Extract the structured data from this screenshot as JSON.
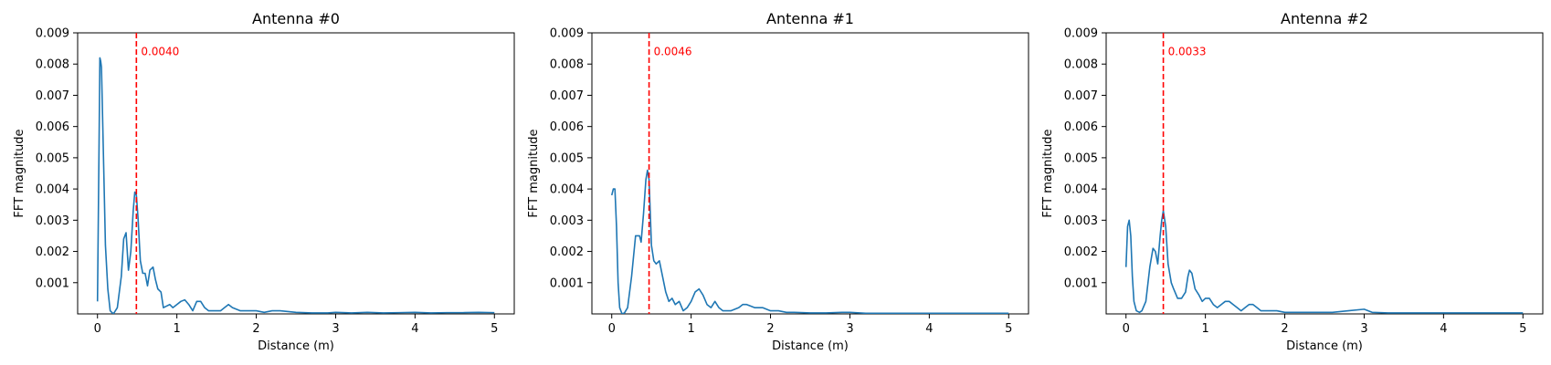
{
  "chart_data": [
    {
      "type": "line",
      "title": "Antenna #0",
      "xlabel": "Distance (m)",
      "ylabel": "FFT magnitude",
      "xlim": [
        -0.25,
        5.25
      ],
      "ylim": [
        0.0,
        0.009
      ],
      "xticks": [
        0,
        1,
        2,
        3,
        4,
        5
      ],
      "yticks": [
        0.001,
        0.002,
        0.003,
        0.004,
        0.005,
        0.006,
        0.007,
        0.008,
        0.009
      ],
      "line_color": "#1f77b4",
      "vline": {
        "x": 0.49,
        "color": "#ff0000",
        "style": "dashed"
      },
      "annotation": {
        "x": 0.49,
        "y": 0.0084,
        "text": "0.0040",
        "color": "#ff0000"
      },
      "series": [
        {
          "x": [
            0.0,
            0.02,
            0.03,
            0.04,
            0.05,
            0.06,
            0.08,
            0.1,
            0.13,
            0.16,
            0.2,
            0.25,
            0.3,
            0.33,
            0.36,
            0.39,
            0.42,
            0.45,
            0.47,
            0.49,
            0.51,
            0.54,
            0.57,
            0.6,
            0.63,
            0.66,
            0.7,
            0.73,
            0.76,
            0.8,
            0.83,
            0.87,
            0.91,
            0.95,
            1.0,
            1.05,
            1.1,
            1.15,
            1.2,
            1.25,
            1.3,
            1.35,
            1.4,
            1.45,
            1.5,
            1.55,
            1.6,
            1.65,
            1.7,
            1.8,
            1.9,
            2.0,
            2.1,
            2.2,
            2.3,
            2.5,
            2.7,
            2.9,
            3.0,
            3.2,
            3.4,
            3.6,
            3.8,
            4.0,
            4.2,
            4.4,
            4.6,
            4.8,
            5.0
          ],
          "y": [
            0.0004,
            0.0055,
            0.0082,
            0.0081,
            0.0079,
            0.0068,
            0.0045,
            0.0022,
            0.0008,
            0.0001,
            0.0,
            0.0002,
            0.0012,
            0.0024,
            0.0026,
            0.0014,
            0.002,
            0.0033,
            0.0039,
            0.0038,
            0.0031,
            0.0017,
            0.0013,
            0.0013,
            0.0009,
            0.0014,
            0.0015,
            0.0011,
            0.0008,
            0.0007,
            0.0002,
            0.00025,
            0.0003,
            0.0002,
            0.0003,
            0.0004,
            0.00045,
            0.0003,
            0.0001,
            0.0004,
            0.0004,
            0.0002,
            0.0001,
            0.0001,
            0.0001,
            0.0001,
            0.0002,
            0.0003,
            0.0002,
            0.0001,
            0.0001,
            0.0001,
            5e-05,
            0.0001,
            0.0001,
            5e-05,
            3e-05,
            3e-05,
            5e-05,
            3e-05,
            5e-05,
            3e-05,
            4e-05,
            5e-05,
            3e-05,
            4e-05,
            4e-05,
            5e-05,
            4e-05
          ]
        }
      ]
    },
    {
      "type": "line",
      "title": "Antenna #1",
      "xlabel": "Distance (m)",
      "ylabel": "FFT magnitude",
      "xlim": [
        -0.25,
        5.25
      ],
      "ylim": [
        0.0,
        0.009
      ],
      "xticks": [
        0,
        1,
        2,
        3,
        4,
        5
      ],
      "yticks": [
        0.001,
        0.002,
        0.003,
        0.004,
        0.005,
        0.006,
        0.007,
        0.008,
        0.009
      ],
      "line_color": "#1f77b4",
      "vline": {
        "x": 0.47,
        "color": "#ff0000",
        "style": "dashed"
      },
      "annotation": {
        "x": 0.47,
        "y": 0.0084,
        "text": "0.0046",
        "color": "#ff0000"
      },
      "series": [
        {
          "x": [
            0.0,
            0.02,
            0.04,
            0.06,
            0.08,
            0.1,
            0.13,
            0.16,
            0.2,
            0.25,
            0.3,
            0.35,
            0.37,
            0.4,
            0.43,
            0.45,
            0.47,
            0.5,
            0.53,
            0.56,
            0.6,
            0.64,
            0.68,
            0.72,
            0.76,
            0.8,
            0.85,
            0.9,
            0.95,
            1.0,
            1.05,
            1.1,
            1.15,
            1.2,
            1.25,
            1.3,
            1.35,
            1.4,
            1.5,
            1.6,
            1.65,
            1.7,
            1.8,
            1.9,
            2.0,
            2.1,
            2.2,
            2.3,
            2.5,
            2.7,
            2.9,
            3.0,
            3.2,
            3.5,
            3.8,
            4.0,
            4.2,
            4.5,
            4.8,
            5.0
          ],
          "y": [
            0.0038,
            0.004,
            0.004,
            0.0028,
            0.001,
            0.0002,
            0.0,
            3e-05,
            0.0002,
            0.0012,
            0.0025,
            0.0025,
            0.0023,
            0.0032,
            0.0043,
            0.0046,
            0.0043,
            0.0022,
            0.0017,
            0.0016,
            0.0017,
            0.0012,
            0.0007,
            0.0004,
            0.0005,
            0.0003,
            0.0004,
            0.0001,
            0.0002,
            0.0004,
            0.0007,
            0.0008,
            0.0006,
            0.0003,
            0.0002,
            0.0004,
            0.0002,
            0.0001,
            0.0001,
            0.0002,
            0.0003,
            0.0003,
            0.0002,
            0.0002,
            0.0001,
            0.0001,
            5e-05,
            5e-05,
            3e-05,
            3e-05,
            5e-05,
            5e-05,
            2e-05,
            2e-05,
            2e-05,
            2e-05,
            2e-05,
            2e-05,
            2e-05,
            2e-05
          ]
        }
      ]
    },
    {
      "type": "line",
      "title": "Antenna #2",
      "xlabel": "Distance (m)",
      "ylabel": "FFT magnitude",
      "xlim": [
        -0.25,
        5.25
      ],
      "ylim": [
        0.0,
        0.009
      ],
      "xticks": [
        0,
        1,
        2,
        3,
        4,
        5
      ],
      "yticks": [
        0.001,
        0.002,
        0.003,
        0.004,
        0.005,
        0.006,
        0.007,
        0.008,
        0.009
      ],
      "line_color": "#1f77b4",
      "vline": {
        "x": 0.47,
        "color": "#ff0000",
        "style": "dashed"
      },
      "annotation": {
        "x": 0.47,
        "y": 0.0084,
        "text": "0.0033",
        "color": "#ff0000"
      },
      "series": [
        {
          "x": [
            0.0,
            0.02,
            0.04,
            0.06,
            0.08,
            0.1,
            0.13,
            0.17,
            0.2,
            0.25,
            0.3,
            0.34,
            0.37,
            0.4,
            0.43,
            0.45,
            0.47,
            0.5,
            0.53,
            0.57,
            0.6,
            0.65,
            0.7,
            0.75,
            0.78,
            0.8,
            0.83,
            0.87,
            0.92,
            0.96,
            1.0,
            1.05,
            1.1,
            1.15,
            1.2,
            1.25,
            1.3,
            1.35,
            1.4,
            1.45,
            1.5,
            1.55,
            1.6,
            1.65,
            1.7,
            1.75,
            1.8,
            1.9,
            2.0,
            2.2,
            2.4,
            2.6,
            2.8,
            3.0,
            3.1,
            3.3,
            3.5,
            3.7,
            4.0,
            4.3,
            4.6,
            4.8,
            5.0
          ],
          "y": [
            0.0015,
            0.0028,
            0.003,
            0.0025,
            0.0012,
            0.0004,
            0.0001,
            5e-05,
            0.0001,
            0.0004,
            0.0015,
            0.0021,
            0.002,
            0.0016,
            0.0025,
            0.003,
            0.0033,
            0.0028,
            0.0016,
            0.001,
            0.0008,
            0.0005,
            0.0005,
            0.0007,
            0.0012,
            0.0014,
            0.0013,
            0.0008,
            0.0006,
            0.0004,
            0.0005,
            0.0005,
            0.0003,
            0.0002,
            0.0003,
            0.0004,
            0.0004,
            0.0003,
            0.0002,
            0.0001,
            0.0002,
            0.0003,
            0.0003,
            0.0002,
            0.0001,
            0.0001,
            0.0001,
            0.0001,
            5e-05,
            5e-05,
            5e-05,
            5e-05,
            0.0001,
            0.00015,
            5e-05,
            3e-05,
            3e-05,
            3e-05,
            3e-05,
            3e-05,
            3e-05,
            3e-05,
            3e-05
          ]
        }
      ]
    }
  ]
}
